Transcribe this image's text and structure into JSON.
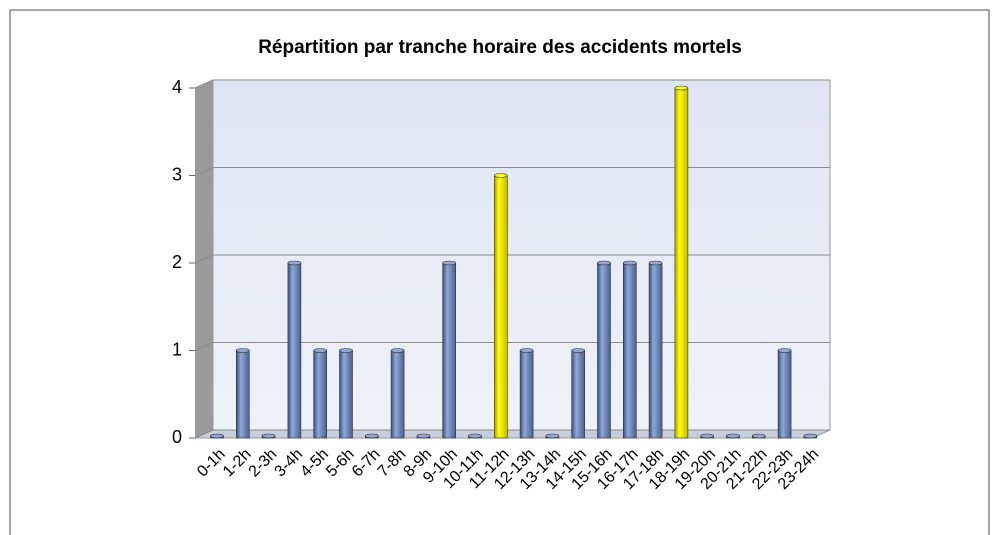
{
  "chart_data": {
    "type": "bar",
    "title": "Répartition par tranche horaire des accidents mortels",
    "categories": [
      "0-1h",
      "1-2h",
      "2-3h",
      "3-4h",
      "4-5h",
      "5-6h",
      "6-7h",
      "7-8h",
      "8-9h",
      "9-10h",
      "10-11h",
      "11-12h",
      "12-13h",
      "13-14h",
      "14-15h",
      "15-16h",
      "16-17h",
      "17-18h",
      "18-19h",
      "19-20h",
      "20-21h",
      "21-22h",
      "22-23h",
      "23-24h"
    ],
    "values": [
      0,
      1,
      0,
      2,
      1,
      1,
      0,
      1,
      0,
      2,
      0,
      3,
      1,
      0,
      1,
      2,
      2,
      2,
      4,
      0,
      0,
      0,
      1,
      0
    ],
    "colors": [
      "#8fa8d8",
      "#8fa8d8",
      "#8fa8d8",
      "#8fa8d8",
      "#8fa8d8",
      "#8fa8d8",
      "#8fa8d8",
      "#8fa8d8",
      "#8fa8d8",
      "#8fa8d8",
      "#8fa8d8",
      "#ffff00",
      "#8fa8d8",
      "#8fa8d8",
      "#8fa8d8",
      "#8fa8d8",
      "#8fa8d8",
      "#8fa8d8",
      "#ffff00",
      "#8fa8d8",
      "#8fa8d8",
      "#8fa8d8",
      "#8fa8d8",
      "#8fa8d8"
    ],
    "ylim": [
      0,
      4
    ],
    "yticks": [
      0,
      1,
      2,
      3,
      4
    ],
    "grid": true
  }
}
